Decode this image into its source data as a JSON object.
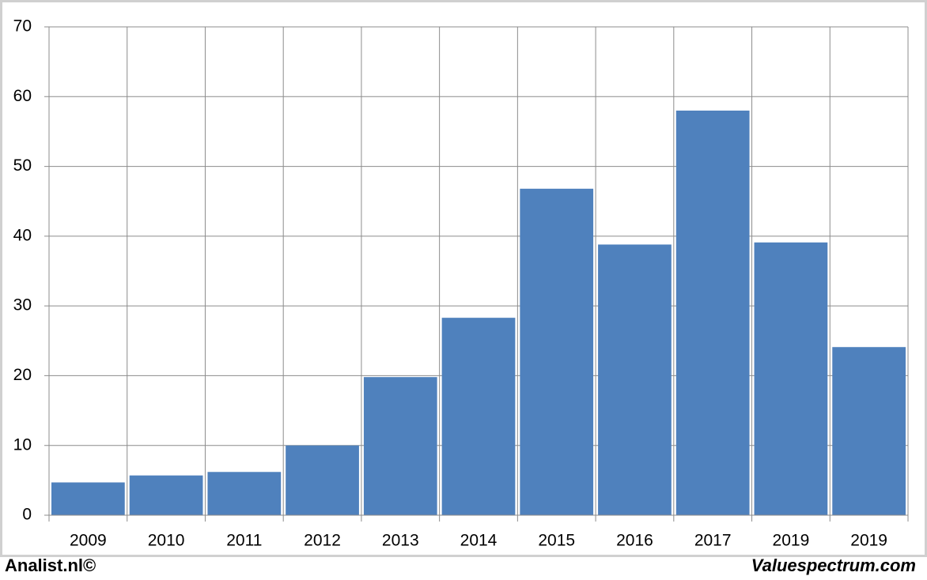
{
  "chart_data": {
    "type": "bar",
    "categories": [
      "2009",
      "2010",
      "2011",
      "2012",
      "2013",
      "2014",
      "2015",
      "2016",
      "2017",
      "2019",
      "2019"
    ],
    "values": [
      4.7,
      5.7,
      6.2,
      10,
      19.8,
      28.3,
      46.8,
      38.8,
      58,
      39.1,
      24.1
    ],
    "color": "#4f81bd",
    "ylim": [
      0,
      70
    ],
    "yticks": [
      0,
      10,
      20,
      30,
      40,
      50,
      60,
      70
    ],
    "grid": true
  },
  "footer": {
    "left": "Analist.nl©",
    "right": "Valuespectrum.com"
  }
}
